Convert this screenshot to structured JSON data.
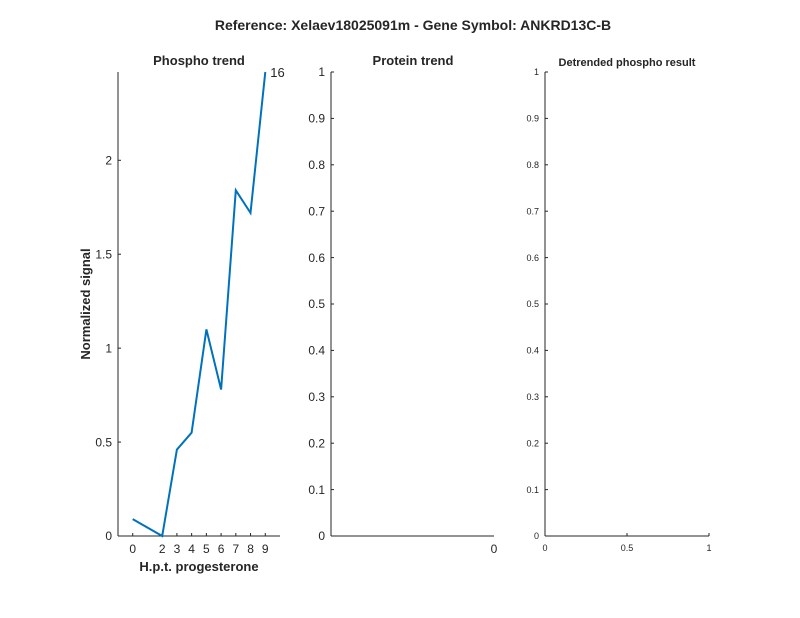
{
  "figure": {
    "suptitle": "Reference:  Xelaev18025091m - Gene Symbol:  ANKRD13C-B"
  },
  "chart_data": [
    {
      "type": "line",
      "title": "Phospho trend",
      "xlabel": "H.p.t. progesterone",
      "ylabel": "Normalized signal",
      "x": [
        0,
        2,
        3,
        4,
        5,
        6,
        7,
        8,
        9
      ],
      "xticks": [
        "0",
        "2",
        "3",
        "4",
        "5",
        "6",
        "7",
        "8",
        "9"
      ],
      "series": [
        {
          "values": [
            0.09,
            0.0,
            0.46,
            0.55,
            1.1,
            0.78,
            1.84,
            1.72,
            2.47
          ],
          "color": "#0072BD"
        }
      ],
      "end_label": "16",
      "ylim": [
        0,
        2.47
      ],
      "yticks": [
        "0",
        "0.5",
        "1",
        "1.5",
        "2"
      ],
      "grid": false
    },
    {
      "type": "line",
      "title": "Protein trend",
      "xlabel": "",
      "ylabel": "",
      "series": [],
      "xticks": [
        "0"
      ],
      "ylim": [
        0,
        1
      ],
      "yticks": [
        "0",
        "0.1",
        "0.2",
        "0.3",
        "0.4",
        "0.5",
        "0.6",
        "0.7",
        "0.8",
        "0.9",
        "1"
      ],
      "grid": false
    },
    {
      "type": "line",
      "title": "Detrended phospho result",
      "xlabel": "",
      "ylabel": "",
      "series": [],
      "xlim": [
        0,
        1
      ],
      "xticks": [
        "0",
        "0.5",
        "1"
      ],
      "ylim": [
        0,
        1
      ],
      "yticks": [
        "0",
        "0.1",
        "0.2",
        "0.3",
        "0.4",
        "0.5",
        "0.6",
        "0.7",
        "0.8",
        "0.9",
        "1"
      ],
      "grid": false
    }
  ]
}
